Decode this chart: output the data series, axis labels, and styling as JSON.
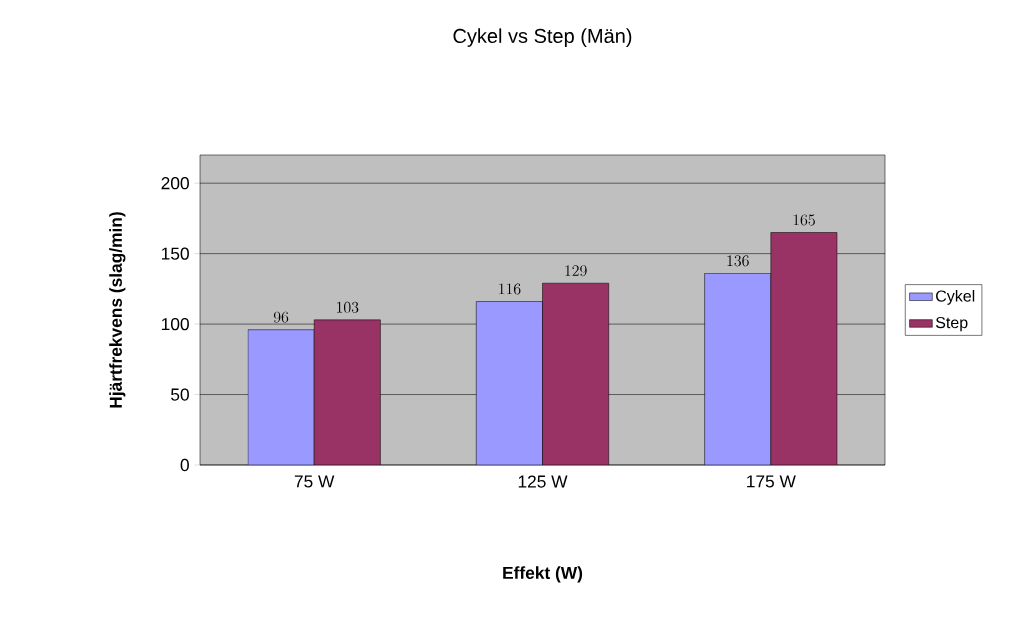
{
  "chart_data": {
    "type": "bar",
    "title": "Cykel vs Step (Män)",
    "xlabel": "Effekt (W)",
    "ylabel": "Hjärtfrekvens (slag/min)",
    "categories": [
      "75 W",
      "125 W",
      "175 W"
    ],
    "series": [
      {
        "name": "Cykel",
        "color": "#9999ff",
        "values": [
          96,
          116,
          136
        ]
      },
      {
        "name": "Step",
        "color": "#993366",
        "values": [
          103,
          129,
          165
        ]
      }
    ],
    "ylim": [
      0,
      220
    ],
    "yticks": [
      0,
      50,
      100,
      150,
      200
    ],
    "grid": "y",
    "legend": "right",
    "data_labels": true
  }
}
